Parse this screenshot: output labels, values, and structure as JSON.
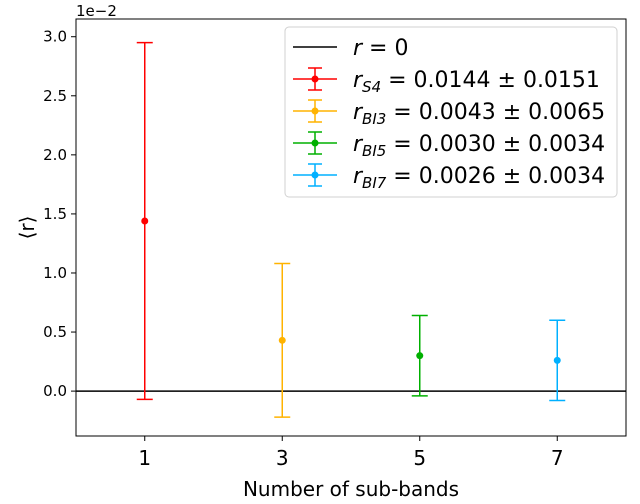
{
  "chart_data": {
    "type": "scatter",
    "xlabel": "Number of sub-bands",
    "ylabel": "⟨r⟩",
    "y_offset_label": "1e−2",
    "y_scale": 0.01,
    "xlim": [
      0,
      8
    ],
    "ylim": [
      -0.38,
      3.15
    ],
    "x_ticks": [
      1,
      3,
      5,
      7
    ],
    "y_ticks": [
      0.0,
      0.5,
      1.0,
      1.5,
      2.0,
      2.5,
      3.0
    ],
    "y_tick_labels": [
      "0.0",
      "0.5",
      "1.0",
      "1.5",
      "2.0",
      "2.5",
      "3.0"
    ],
    "grid": false,
    "legend_position": "top-right",
    "reference_line": {
      "y": 0,
      "color": "#000000",
      "label_var": "r",
      "label_rest": " = 0"
    },
    "series": [
      {
        "x": 1,
        "value": 1.44,
        "err": 1.51,
        "color": "#ff0000",
        "label_var": "r",
        "label_sub": "S4",
        "label_rest": " = 0.0144 ± 0.0151"
      },
      {
        "x": 3,
        "value": 0.43,
        "err": 0.65,
        "color": "#ffb300",
        "label_var": "r",
        "label_sub": "BI3",
        "label_rest": " = 0.0043 ± 0.0065"
      },
      {
        "x": 5,
        "value": 0.3,
        "err": 0.34,
        "color": "#00b000",
        "label_var": "r",
        "label_sub": "BI5",
        "label_rest": " = 0.0030 ± 0.0034"
      },
      {
        "x": 7,
        "value": 0.26,
        "err": 0.34,
        "color": "#00b0ff",
        "label_var": "r",
        "label_sub": "BI7",
        "label_rest": " = 0.0026 ± 0.0034"
      }
    ]
  }
}
